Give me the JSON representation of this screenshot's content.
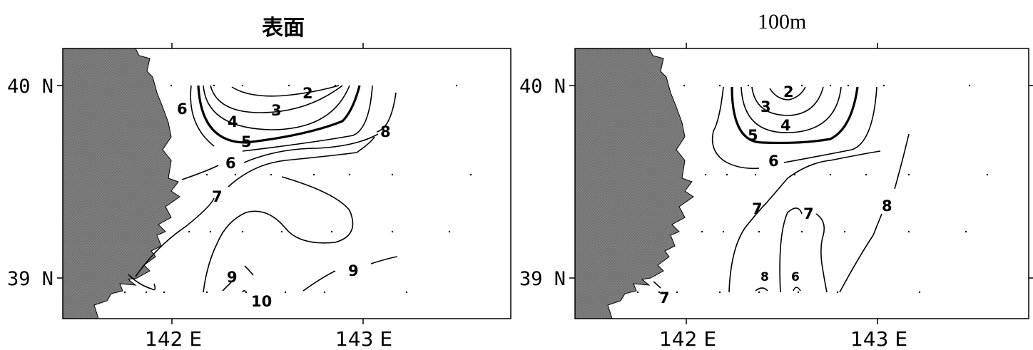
{
  "panels": [
    {
      "title": "表面",
      "lat_labels": [
        "40 N",
        "39 N"
      ],
      "lon_labels": [
        "142 E",
        "143 E"
      ],
      "contour_labels": [
        "2",
        "3",
        "4",
        "5",
        "6",
        "6",
        "7",
        "8",
        "9",
        "9",
        "10"
      ]
    },
    {
      "title": "100m",
      "lat_labels": [
        "40 N",
        "39 N"
      ],
      "lon_labels": [
        "142 E",
        "143 E"
      ],
      "contour_labels": [
        "2",
        "3",
        "4",
        "5",
        "6",
        "7",
        "7",
        "8",
        "8",
        "6",
        "7"
      ]
    }
  ],
  "colors": {
    "land": "#7f7f7f",
    "contour": "#000000",
    "frame": "#000000"
  }
}
